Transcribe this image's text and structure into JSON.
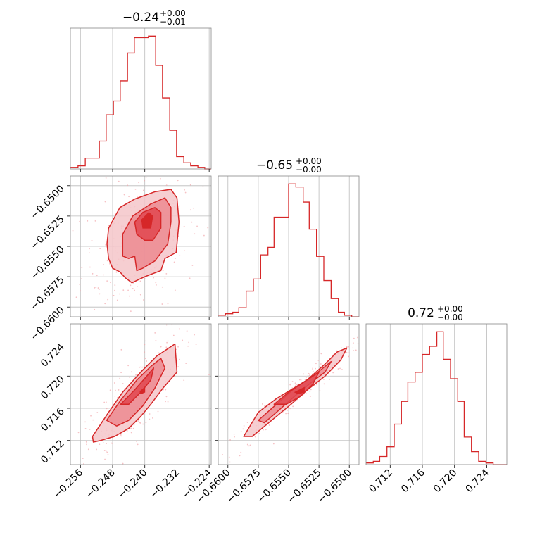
{
  "colors": {
    "main": "#d62728",
    "fill_light": "#f5c6c9",
    "fill_mid": "#ec8a91",
    "fill_dark": "#e0474f",
    "grid": "#bbbbbb",
    "frame": "#888888"
  },
  "titles": {
    "p0": {
      "value": "−0.24",
      "sup": "+0.00",
      "sub": "−0.01"
    },
    "p1": {
      "value": "−0.65",
      "sup": "+0.00",
      "sub": "−0.00"
    },
    "p2": {
      "value": "0.72",
      "sup": "+0.00",
      "sub": "−0.00"
    }
  },
  "chart_data": {
    "type": "corner",
    "grid": true,
    "parameters": [
      {
        "median": -0.24,
        "err_plus": 0.0,
        "err_minus": 0.01,
        "range": [
          -0.2585,
          -0.2235
        ],
        "ticks": [
          "−0.256",
          "−0.248",
          "−0.240",
          "−0.232",
          "−0.224"
        ],
        "tick_values": [
          -0.256,
          -0.248,
          -0.24,
          -0.232,
          -0.224
        ],
        "histogram": {
          "bin_edges": [
            -0.2585,
            -0.2566,
            -0.2548,
            -0.2531,
            -0.2513,
            -0.2496,
            -0.2478,
            -0.2461,
            -0.2443,
            -0.2426,
            -0.2408,
            -0.2391,
            -0.2373,
            -0.2356,
            -0.2338,
            -0.2321,
            -0.2303,
            -0.2286,
            -0.2268,
            -0.2251,
            -0.2235
          ],
          "counts": [
            1,
            2,
            7,
            7,
            18,
            35,
            44,
            57,
            75,
            85,
            85,
            86,
            67,
            46,
            25,
            8,
            4,
            2,
            1,
            0
          ]
        }
      },
      {
        "median": -0.65,
        "err_plus": 0.0,
        "err_minus": 0.0,
        "range": [
          -0.6608,
          -0.6492
        ],
        "ticks": [
          "−0.6600",
          "−0.6575",
          "−0.6550",
          "−0.6525",
          "−0.6500"
        ],
        "tick_values": [
          -0.66,
          -0.6575,
          -0.655,
          -0.6525,
          -0.65
        ],
        "histogram": {
          "bin_edges": [
            -0.6608,
            -0.6602,
            -0.6596,
            -0.6591,
            -0.6585,
            -0.6579,
            -0.6573,
            -0.6567,
            -0.6562,
            -0.6556,
            -0.655,
            -0.6544,
            -0.6538,
            -0.6533,
            -0.6527,
            -0.6521,
            -0.6515,
            -0.6509,
            -0.6504,
            -0.6498,
            -0.6492
          ],
          "counts": [
            1,
            2,
            3,
            6,
            17,
            25,
            41,
            46,
            66,
            66,
            88,
            86,
            76,
            58,
            40,
            24,
            12,
            3,
            1,
            0
          ]
        }
      },
      {
        "median": 0.72,
        "err_plus": 0.0,
        "err_minus": 0.0,
        "range": [
          0.709,
          0.7265
        ],
        "ticks": [
          "0.712",
          "0.716",
          "0.720",
          "0.724"
        ],
        "tick_values": [
          0.712,
          0.716,
          0.72,
          0.724
        ],
        "histogram": {
          "bin_edges": [
            0.709,
            0.7099,
            0.7107,
            0.7116,
            0.7125,
            0.7134,
            0.7142,
            0.7151,
            0.716,
            0.7169,
            0.7178,
            0.7186,
            0.7195,
            0.7204,
            0.7212,
            0.7221,
            0.723,
            0.7239,
            0.7248,
            0.7256,
            0.7265
          ],
          "counts": [
            1,
            2,
            5,
            11,
            25,
            39,
            51,
            57,
            68,
            73,
            82,
            65,
            53,
            39,
            17,
            8,
            2,
            1,
            0,
            0
          ]
        }
      }
    ],
    "contour_levels": [
      {
        "level": "outer",
        "color": "#f5c6c9"
      },
      {
        "level": "middle",
        "color": "#ec8a91"
      },
      {
        "level": "inner",
        "color": "#e0474f"
      }
    ],
    "pairs": [
      {
        "x_param": 0,
        "y_param": 1,
        "contours": [
          [
            [
              -0.249,
              -0.6535
            ],
            [
              -0.2462,
              -0.6518
            ],
            [
              -0.2425,
              -0.6511
            ],
            [
              -0.2375,
              -0.6505
            ],
            [
              -0.2335,
              -0.6503
            ],
            [
              -0.232,
              -0.651
            ],
            [
              -0.2315,
              -0.653
            ],
            [
              -0.2322,
              -0.6555
            ],
            [
              -0.235,
              -0.656
            ],
            [
              -0.236,
              -0.657
            ],
            [
              -0.24,
              -0.6575
            ],
            [
              -0.2432,
              -0.658
            ],
            [
              -0.2448,
              -0.6576
            ],
            [
              -0.2462,
              -0.6571
            ],
            [
              -0.248,
              -0.6568
            ],
            [
              -0.249,
              -0.656
            ],
            [
              -0.2494,
              -0.6548
            ]
          ],
          [
            [
              -0.2455,
              -0.654
            ],
            [
              -0.243,
              -0.6525
            ],
            [
              -0.2385,
              -0.6515
            ],
            [
              -0.235,
              -0.651
            ],
            [
              -0.2335,
              -0.6518
            ],
            [
              -0.2335,
              -0.653
            ],
            [
              -0.2343,
              -0.6548
            ],
            [
              -0.2375,
              -0.6562
            ],
            [
              -0.2405,
              -0.6568
            ],
            [
              -0.242,
              -0.657
            ],
            [
              -0.2425,
              -0.6558
            ],
            [
              -0.244,
              -0.656
            ],
            [
              -0.2455,
              -0.6558
            ]
          ],
          [
            [
              -0.2425,
              -0.653
            ],
            [
              -0.2405,
              -0.6522
            ],
            [
              -0.2375,
              -0.6518
            ],
            [
              -0.236,
              -0.6522
            ],
            [
              -0.236,
              -0.6535
            ],
            [
              -0.238,
              -0.6545
            ],
            [
              -0.24,
              -0.6545
            ],
            [
              -0.242,
              -0.654
            ]
          ]
        ],
        "inner_spot": [
          [
            -0.2408,
            -0.6528
          ],
          [
            -0.239,
            -0.6522
          ],
          [
            -0.238,
            -0.6525
          ],
          [
            -0.2385,
            -0.6535
          ],
          [
            -0.2405,
            -0.6535
          ]
        ]
      },
      {
        "x_param": 0,
        "y_param": 2,
        "contours": [
          [
            [
              -0.253,
              0.7125
            ],
            [
              -0.249,
              0.7155
            ],
            [
              -0.2455,
              0.718
            ],
            [
              -0.241,
              0.7205
            ],
            [
              -0.237,
              0.7225
            ],
            [
              -0.234,
              0.7235
            ],
            [
              -0.2325,
              0.724
            ],
            [
              -0.232,
              0.7205
            ],
            [
              -0.2355,
              0.7185
            ],
            [
              -0.2385,
              0.7165
            ],
            [
              -0.241,
              0.715
            ],
            [
              -0.244,
              0.7135
            ],
            [
              -0.2475,
              0.7125
            ],
            [
              -0.251,
              0.712
            ],
            [
              -0.2528,
              0.7118
            ]
          ],
          [
            [
              -0.2495,
              0.7145
            ],
            [
              -0.246,
              0.717
            ],
            [
              -0.242,
              0.7195
            ],
            [
              -0.2385,
              0.7212
            ],
            [
              -0.236,
              0.7222
            ],
            [
              -0.235,
              0.721
            ],
            [
              -0.2375,
              0.7185
            ],
            [
              -0.2405,
              0.7163
            ],
            [
              -0.244,
              0.7145
            ],
            [
              -0.247,
              0.7138
            ]
          ],
          [
            [
              -0.246,
              0.7165
            ],
            [
              -0.2425,
              0.7183
            ],
            [
              -0.2395,
              0.72
            ],
            [
              -0.2378,
              0.721
            ],
            [
              -0.2385,
              0.7195
            ],
            [
              -0.241,
              0.718
            ],
            [
              -0.244,
              0.7165
            ]
          ]
        ],
        "inner_spot": [
          [
            -0.2412,
            0.7181
          ],
          [
            -0.24,
            0.7186
          ],
          [
            -0.24,
            0.718
          ],
          [
            -0.241,
            0.7178
          ]
        ]
      },
      {
        "x_param": 1,
        "y_param": 2,
        "contours": [
          [
            [
              -0.6587,
              0.7125
            ],
            [
              -0.6575,
              0.7155
            ],
            [
              -0.656,
              0.7172
            ],
            [
              -0.6535,
              0.7195
            ],
            [
              -0.652,
              0.7215
            ],
            [
              -0.651,
              0.723
            ],
            [
              -0.6502,
              0.7235
            ],
            [
              -0.6507,
              0.722
            ],
            [
              -0.652,
              0.72
            ],
            [
              -0.6537,
              0.718
            ],
            [
              -0.6548,
              0.7165
            ],
            [
              -0.656,
              0.715
            ],
            [
              -0.6572,
              0.7135
            ],
            [
              -0.658,
              0.7125
            ]
          ],
          [
            [
              -0.6575,
              0.7145
            ],
            [
              -0.656,
              0.7165
            ],
            [
              -0.6545,
              0.7185
            ],
            [
              -0.653,
              0.72
            ],
            [
              -0.6515,
              0.7218
            ],
            [
              -0.652,
              0.7205
            ],
            [
              -0.6533,
              0.719
            ],
            [
              -0.6545,
              0.7175
            ],
            [
              -0.656,
              0.7155
            ],
            [
              -0.657,
              0.7142
            ]
          ],
          [
            [
              -0.6562,
              0.7165
            ],
            [
              -0.655,
              0.718
            ],
            [
              -0.6535,
              0.7195
            ],
            [
              -0.6525,
              0.7205
            ],
            [
              -0.653,
              0.719
            ],
            [
              -0.654,
              0.7175
            ],
            [
              -0.6552,
              0.7165
            ]
          ]
        ],
        "inner_spot": [
          [
            -0.6545,
            0.718
          ],
          [
            -0.6537,
            0.7186
          ],
          [
            -0.6537,
            0.718
          ],
          [
            -0.6542,
            0.7178
          ]
        ]
      }
    ]
  }
}
